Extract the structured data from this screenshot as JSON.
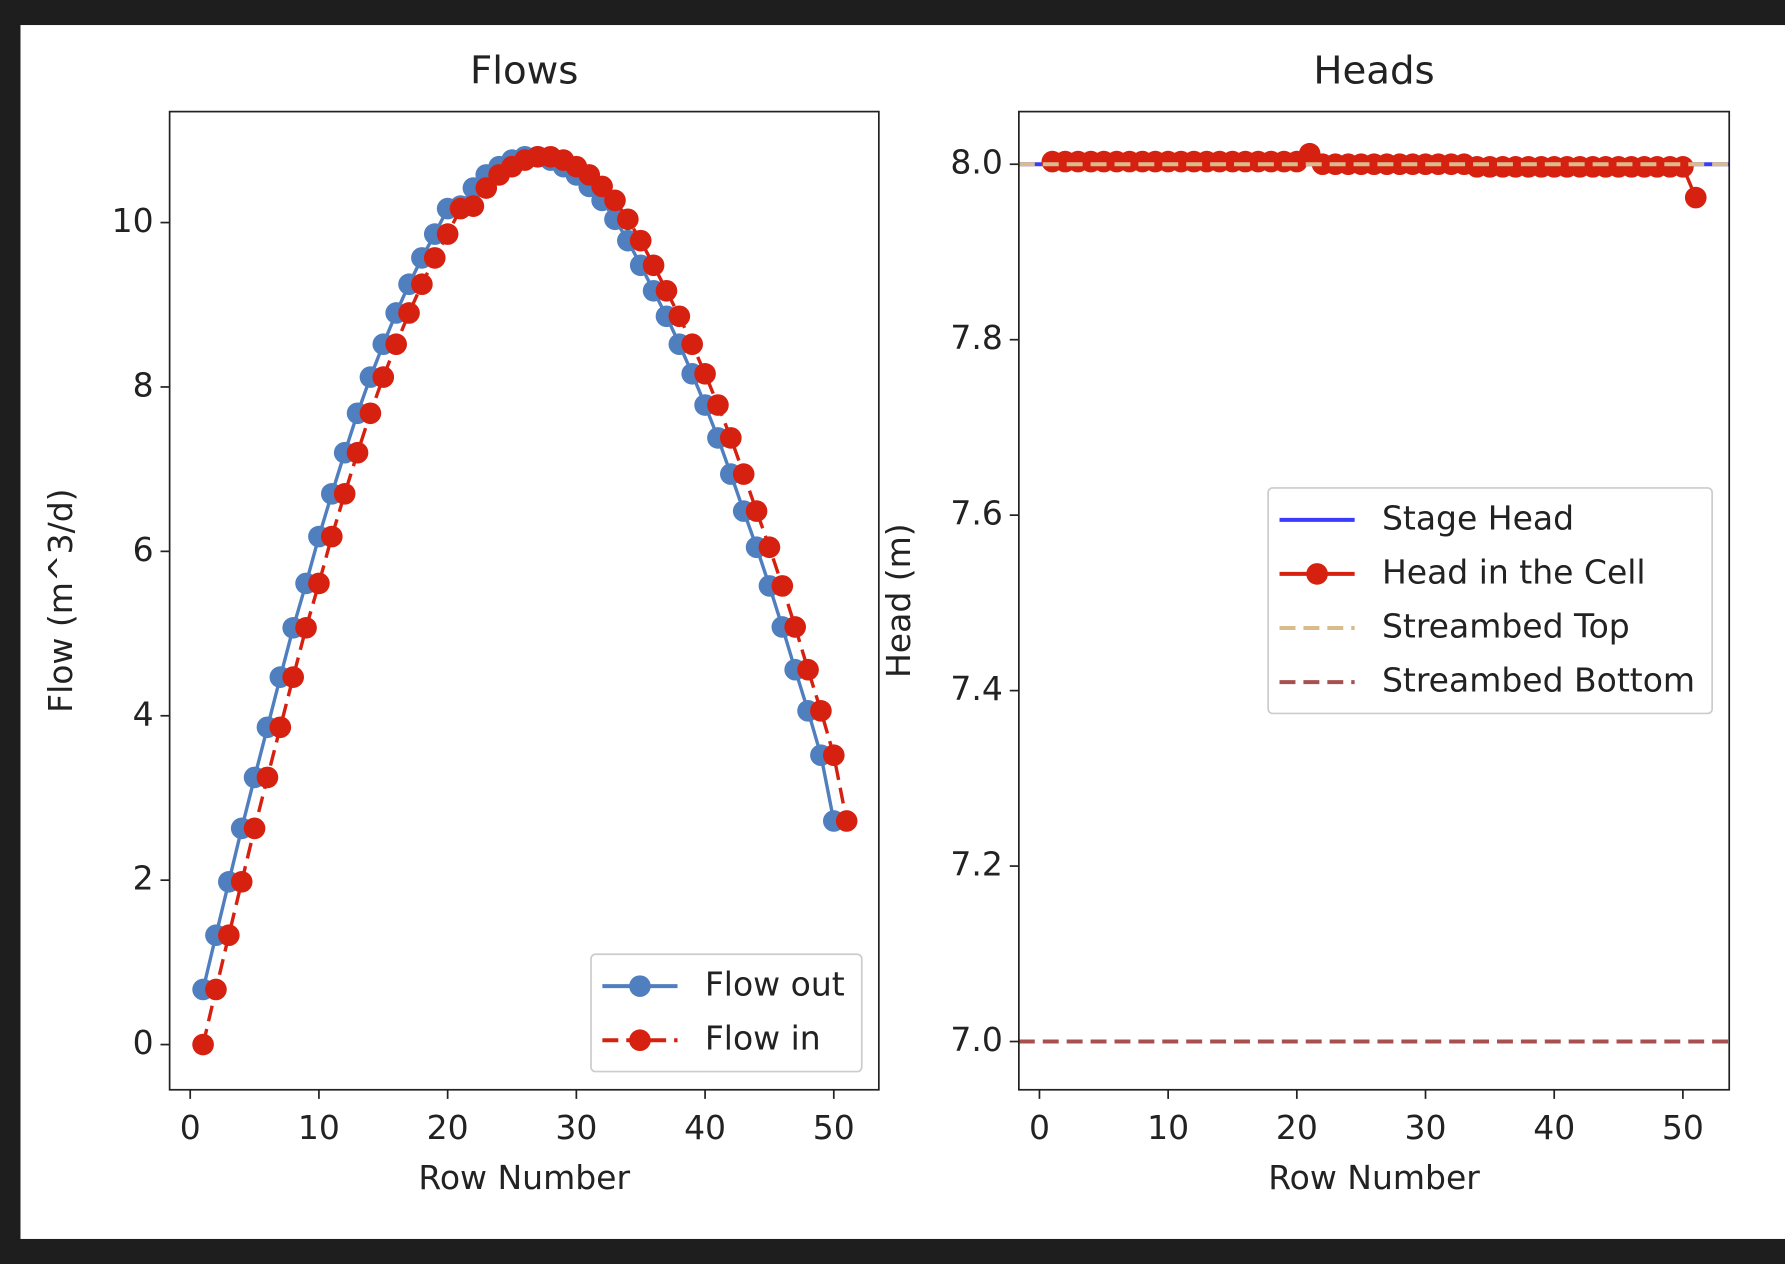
{
  "chart_data": [
    {
      "type": "line",
      "title": "Flows",
      "xlabel": "Row Number",
      "ylabel": "Flow (m^3/d)",
      "xlim": [
        -1.6,
        53.5
      ],
      "ylim": [
        -0.55,
        11.35
      ],
      "xticks": [
        0,
        10,
        20,
        30,
        40,
        50
      ],
      "yticks": [
        0,
        2,
        4,
        6,
        8,
        10
      ],
      "legend": "lower right",
      "series": [
        {
          "name": "Flow out",
          "color": "#4f7fbf",
          "linestyle": "solid",
          "marker": "circle",
          "x": [
            1,
            2,
            3,
            4,
            5,
            6,
            7,
            8,
            9,
            10,
            11,
            12,
            13,
            14,
            15,
            16,
            17,
            18,
            19,
            20,
            21,
            22,
            23,
            24,
            25,
            26,
            27,
            28,
            29,
            30,
            31,
            32,
            33,
            34,
            35,
            36,
            37,
            38,
            39,
            40,
            41,
            42,
            43,
            44,
            45,
            46,
            47,
            48,
            49,
            50
          ],
          "values": [
            0.67,
            1.33,
            1.98,
            2.63,
            3.25,
            3.86,
            4.47,
            5.07,
            5.61,
            6.18,
            6.7,
            7.2,
            7.68,
            8.12,
            8.52,
            8.9,
            9.25,
            9.57,
            9.86,
            10.17,
            10.2,
            10.42,
            10.58,
            10.68,
            10.76,
            10.8,
            10.8,
            10.76,
            10.68,
            10.58,
            10.44,
            10.27,
            10.04,
            9.78,
            9.48,
            9.17,
            8.86,
            8.52,
            8.16,
            7.78,
            7.38,
            6.94,
            6.49,
            6.05,
            5.58,
            5.08,
            4.56,
            4.06,
            3.52,
            2.72
          ]
        },
        {
          "name": "Flow in",
          "color": "#d62010",
          "linestyle": "dashed",
          "marker": "circle",
          "x": [
            1,
            2,
            3,
            4,
            5,
            6,
            7,
            8,
            9,
            10,
            11,
            12,
            13,
            14,
            15,
            16,
            17,
            18,
            19,
            20,
            21,
            22,
            23,
            24,
            25,
            26,
            27,
            28,
            29,
            30,
            31,
            32,
            33,
            34,
            35,
            36,
            37,
            38,
            39,
            40,
            41,
            42,
            43,
            44,
            45,
            46,
            47,
            48,
            49,
            50,
            51
          ],
          "values": [
            0,
            0.67,
            1.33,
            1.98,
            2.63,
            3.25,
            3.86,
            4.47,
            5.07,
            5.61,
            6.18,
            6.7,
            7.2,
            7.68,
            8.12,
            8.52,
            8.9,
            9.25,
            9.57,
            9.86,
            10.17,
            10.2,
            10.42,
            10.58,
            10.68,
            10.76,
            10.8,
            10.8,
            10.76,
            10.68,
            10.58,
            10.44,
            10.27,
            10.04,
            9.78,
            9.48,
            9.17,
            8.86,
            8.52,
            8.16,
            7.78,
            7.38,
            6.94,
            6.49,
            6.05,
            5.58,
            5.08,
            4.56,
            4.06,
            3.52,
            2.72
          ]
        }
      ]
    },
    {
      "type": "line",
      "title": "Heads",
      "xlabel": "Row Number",
      "ylabel": "Head (m)",
      "xlim": [
        -1.6,
        53.6
      ],
      "ylim": [
        6.945,
        8.06
      ],
      "xticks": [
        0,
        10,
        20,
        30,
        40,
        50
      ],
      "yticks": [
        {
          "value": 7,
          "label": "7.0"
        },
        7.2,
        7.4,
        7.6,
        7.8,
        {
          "value": 8,
          "label": "8.0"
        }
      ],
      "legend": "center right",
      "series": [
        {
          "name": "Stage Head",
          "color": "#3b3bff",
          "linestyle": "solid",
          "value": 8.0
        },
        {
          "name": "Head in the Cell",
          "color": "#d62010",
          "linestyle": "solid",
          "marker": "circle",
          "x": [
            1,
            2,
            3,
            4,
            5,
            6,
            7,
            8,
            9,
            10,
            11,
            12,
            13,
            14,
            15,
            16,
            17,
            18,
            19,
            20,
            21,
            22,
            23,
            24,
            25,
            26,
            27,
            28,
            29,
            30,
            31,
            32,
            33,
            34,
            35,
            36,
            37,
            38,
            39,
            40,
            41,
            42,
            43,
            44,
            45,
            46,
            47,
            48,
            49,
            50,
            51
          ],
          "values": [
            8.003,
            8.003,
            8.003,
            8.003,
            8.003,
            8.003,
            8.003,
            8.003,
            8.003,
            8.003,
            8.003,
            8.003,
            8.003,
            8.003,
            8.003,
            8.003,
            8.003,
            8.003,
            8.003,
            8.003,
            8.012,
            8.0,
            8.0,
            8.0,
            8.0,
            8.0,
            8.0,
            8.0,
            8.0,
            8.0,
            8.0,
            8.0,
            8.0,
            7.997,
            7.997,
            7.997,
            7.997,
            7.997,
            7.997,
            7.997,
            7.997,
            7.997,
            7.997,
            7.997,
            7.997,
            7.997,
            7.997,
            7.997,
            7.997,
            7.997,
            7.962
          ]
        },
        {
          "name": "Streambed Top",
          "color": "#d8bc8c",
          "linestyle": "dashed",
          "value": 8.0
        },
        {
          "name": "Streambed Bottom",
          "color": "#a85050",
          "linestyle": "dashed",
          "value": 7.0
        }
      ]
    }
  ]
}
